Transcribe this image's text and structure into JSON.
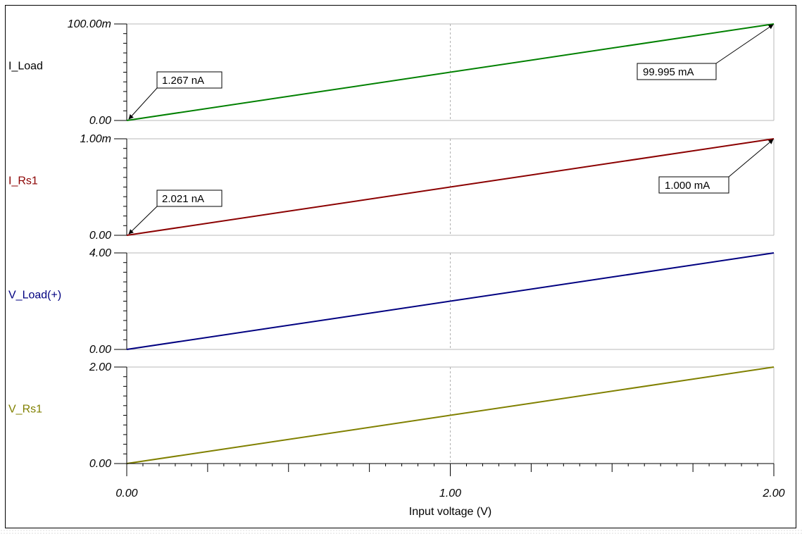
{
  "chart_data": {
    "type": "line",
    "xlabel": "Input voltage (V)",
    "xlim": [
      0,
      2
    ],
    "x_tick_labels": [
      "0.00",
      "1.00",
      "2.00"
    ],
    "grid": "vertical dashed at x=1.00",
    "panels": [
      {
        "name": "I_Load",
        "color": "#008000",
        "ylim": [
          0,
          0.1
        ],
        "y_tick_labels": [
          "0.00",
          "100.00m"
        ],
        "series": [
          {
            "name": "I_Load",
            "x": [
              0,
              2
            ],
            "y": [
              1.267e-09,
              0.099995
            ]
          }
        ],
        "annotations": [
          {
            "text": "1.267 nA",
            "x": 0,
            "y": 0
          },
          {
            "text": "99.995 mA",
            "x": 2,
            "y": 0.1
          }
        ]
      },
      {
        "name": "I_Rs1",
        "color": "#8b0000",
        "ylim": [
          0,
          0.001
        ],
        "y_tick_labels": [
          "0.00",
          "1.00m"
        ],
        "series": [
          {
            "name": "I_Rs1",
            "x": [
              0,
              2
            ],
            "y": [
              2.021e-09,
              0.001
            ]
          }
        ],
        "annotations": [
          {
            "text": "2.021 nA",
            "x": 0,
            "y": 0
          },
          {
            "text": "1.000 mA",
            "x": 2,
            "y": 0.001
          }
        ]
      },
      {
        "name": "V_Load(+)",
        "color": "#000080",
        "ylim": [
          0,
          4
        ],
        "y_tick_labels": [
          "0.00",
          "4.00"
        ],
        "series": [
          {
            "name": "V_Load(+)",
            "x": [
              0,
              2
            ],
            "y": [
              0,
              4
            ]
          }
        ],
        "annotations": []
      },
      {
        "name": "V_Rs1",
        "color": "#808000",
        "ylim": [
          0,
          2
        ],
        "y_tick_labels": [
          "0.00",
          "2.00"
        ],
        "series": [
          {
            "name": "V_Rs1",
            "x": [
              0,
              2
            ],
            "y": [
              0,
              2
            ]
          }
        ],
        "annotations": []
      }
    ]
  }
}
